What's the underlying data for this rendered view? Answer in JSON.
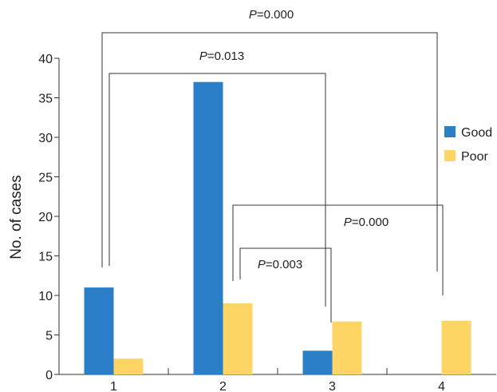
{
  "chart_data": {
    "type": "bar",
    "title": "",
    "xlabel": "",
    "ylabel": "No. of cases",
    "categories": [
      "1",
      "2",
      "3",
      "4"
    ],
    "ylim": [
      0,
      40
    ],
    "yticks": [
      0,
      5,
      10,
      15,
      20,
      25,
      30,
      35,
      40
    ],
    "grid": false,
    "legend_position": "right",
    "series": [
      {
        "name": "Good",
        "color": "#2a7fc8",
        "values": [
          11,
          37,
          3,
          0
        ]
      },
      {
        "name": "Poor",
        "color": "#fdd564",
        "values": [
          2,
          9,
          6.7,
          6.8
        ]
      }
    ],
    "annotations": [
      {
        "p_prefix": "P",
        "p_value": "=0.000",
        "from": "1",
        "to": "4"
      },
      {
        "p_prefix": "P",
        "p_value": "=0.013",
        "from": "1",
        "to": "3"
      },
      {
        "p_prefix": "P",
        "p_value": "=0.000",
        "from": "2",
        "to": "4"
      },
      {
        "p_prefix": "P",
        "p_value": "=0.003",
        "from": "2",
        "to": "3"
      }
    ]
  }
}
